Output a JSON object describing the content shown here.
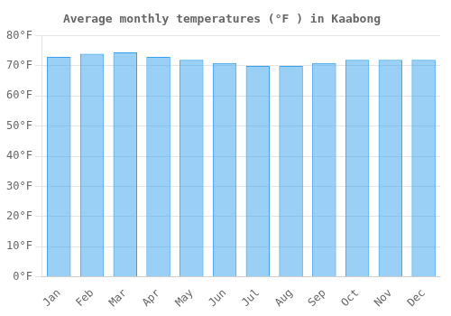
{
  "chart_data": {
    "type": "bar",
    "title": "Average monthly temperatures (°F ) in Kaabong",
    "categories": [
      "Jan",
      "Feb",
      "Mar",
      "Apr",
      "May",
      "Jun",
      "Jul",
      "Aug",
      "Sep",
      "Oct",
      "Nov",
      "Dec"
    ],
    "values": [
      73,
      74,
      74.5,
      73,
      72,
      71,
      70,
      70,
      71,
      72,
      72,
      72
    ],
    "ylim": [
      0,
      80
    ],
    "yticks": [
      {
        "value": 0,
        "label": "0°F"
      },
      {
        "value": 10,
        "label": "10°F"
      },
      {
        "value": 20,
        "label": "20°F"
      },
      {
        "value": 30,
        "label": "30°F"
      },
      {
        "value": 40,
        "label": "40°F"
      },
      {
        "value": 50,
        "label": "50°F"
      },
      {
        "value": 60,
        "label": "60°F"
      },
      {
        "value": 70,
        "label": "70°F"
      },
      {
        "value": 80,
        "label": "80°F"
      }
    ],
    "grid": true
  }
}
